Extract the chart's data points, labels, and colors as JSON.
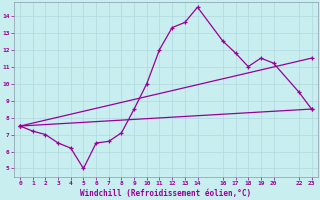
{
  "xlabel": "Windchill (Refroidissement éolien,°C)",
  "bg_color": "#c8eef0",
  "line_color": "#990099",
  "grid_color": "#b0d8dc",
  "xlim": [
    -0.5,
    23.5
  ],
  "ylim": [
    4.5,
    14.8
  ],
  "yticks": [
    5,
    6,
    7,
    8,
    9,
    10,
    11,
    12,
    13,
    14
  ],
  "xticks": [
    0,
    1,
    2,
    3,
    4,
    5,
    6,
    7,
    8,
    9,
    10,
    11,
    12,
    13,
    14,
    16,
    17,
    18,
    19,
    20,
    22,
    23
  ],
  "line1_x": [
    0,
    1,
    2,
    3,
    4,
    5,
    6,
    7,
    8,
    9,
    10,
    11,
    12,
    13,
    14,
    16,
    17,
    18,
    19,
    20,
    22,
    23
  ],
  "line1_y": [
    7.5,
    7.2,
    7.0,
    6.5,
    6.2,
    5.0,
    6.5,
    6.6,
    7.1,
    8.5,
    10.0,
    12.0,
    13.3,
    13.6,
    14.5,
    12.5,
    11.8,
    11.0,
    11.5,
    11.2,
    9.5,
    8.5
  ],
  "line2_x": [
    0,
    23
  ],
  "line2_y": [
    7.5,
    11.5
  ],
  "line3_x": [
    0,
    23
  ],
  "line3_y": [
    7.5,
    8.5
  ],
  "marker": "+"
}
